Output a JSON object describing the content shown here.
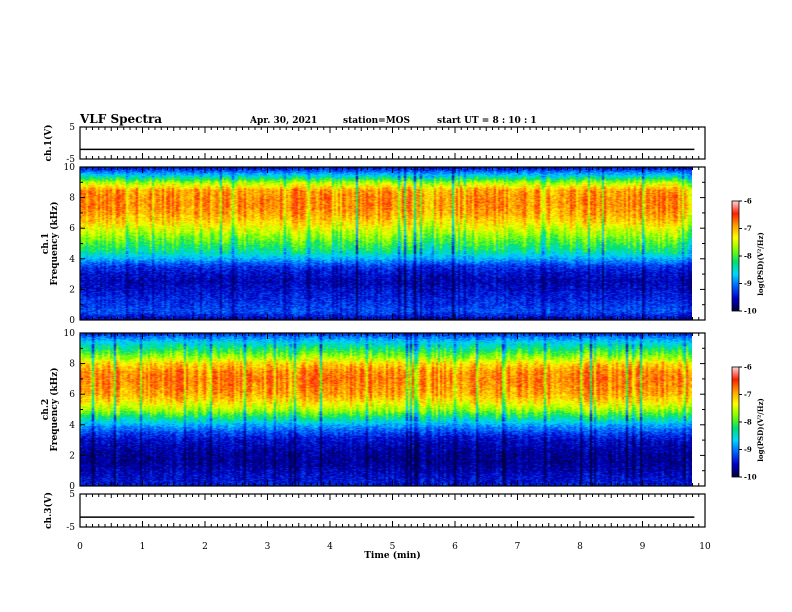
{
  "header": {
    "title": "VLF Spectra",
    "date": "Apr. 30, 2021",
    "station": "station=MOS",
    "start_ut": "start  UT =   8  : 10 : 1"
  },
  "colors": {
    "spectrum": [
      "#000040",
      "#0000c8",
      "#0060ff",
      "#00d8ff",
      "#00e070",
      "#80ff00",
      "#ffff00",
      "#ffa000",
      "#ff2000",
      "#ffd0d0"
    ]
  },
  "chart_data": [
    {
      "type": "line",
      "title": "",
      "ylabel": "ch.1(V)",
      "xlabel": "",
      "xlim": [
        0,
        10
      ],
      "ylim": [
        -5,
        5
      ],
      "yticks": [
        5,
        -5
      ],
      "series": [
        {
          "x": [
            0,
            9.83
          ],
          "values": [
            -2,
            -2
          ]
        }
      ],
      "grid": false
    },
    {
      "type": "heatmap",
      "title": "",
      "ylabel": "ch.1 Frequency (kHz)",
      "xlabel": "",
      "xlim": [
        0,
        9.83
      ],
      "ylim": [
        0,
        10
      ],
      "yticks": [
        0,
        2,
        4,
        6,
        8,
        10
      ],
      "freq_kHz": [
        0,
        0.5,
        1,
        1.5,
        2,
        2.5,
        3,
        3.5,
        4,
        4.5,
        5,
        5.5,
        6,
        6.5,
        7,
        7.5,
        8,
        8.5,
        9,
        9.5,
        10
      ],
      "log_psd": [
        -9.6,
        -9.2,
        -9.3,
        -9.4,
        -9.5,
        -9.6,
        -9.5,
        -9.3,
        -8.8,
        -8.3,
        -8.0,
        -7.7,
        -7.4,
        -7.1,
        -6.9,
        -6.8,
        -6.8,
        -6.9,
        -7.6,
        -8.7,
        -9.5
      ],
      "colorbar": {
        "label": "log(PSD)(V²/Hz)",
        "ticks": [
          -6,
          -7,
          -8,
          -9,
          -10
        ],
        "range": [
          -10,
          -6
        ]
      }
    },
    {
      "type": "heatmap",
      "title": "",
      "ylabel": "ch.2 Frequency (kHz)",
      "xlabel": "",
      "xlim": [
        0,
        9.83
      ],
      "ylim": [
        0,
        10
      ],
      "yticks": [
        0,
        2,
        4,
        6,
        8,
        10
      ],
      "freq_kHz": [
        0,
        0.5,
        1,
        1.5,
        2,
        2.5,
        3,
        3.5,
        4,
        4.5,
        5,
        5.5,
        6,
        6.5,
        7,
        7.5,
        8,
        8.5,
        9,
        9.5,
        10
      ],
      "log_psd": [
        -9.4,
        -9.5,
        -9.6,
        -9.7,
        -9.7,
        -9.6,
        -9.5,
        -9.2,
        -8.8,
        -8.2,
        -7.6,
        -7.2,
        -6.9,
        -6.8,
        -6.7,
        -6.8,
        -7.1,
        -7.7,
        -8.2,
        -8.7,
        -9.3
      ],
      "colorbar": {
        "label": "log(PSD)(V²/Hz)",
        "ticks": [
          -6,
          -7,
          -8,
          -9,
          -10
        ],
        "range": [
          -10,
          -6
        ]
      }
    },
    {
      "type": "line",
      "title": "",
      "ylabel": "ch.3(V)",
      "xlabel": "Time  (min)",
      "xlim": [
        0,
        10
      ],
      "ylim": [
        -5,
        5
      ],
      "yticks": [
        5,
        -5
      ],
      "xticks": [
        0,
        1,
        2,
        3,
        4,
        5,
        6,
        7,
        8,
        9,
        10
      ],
      "series": [
        {
          "x": [
            0,
            9.83
          ],
          "values": [
            -2,
            -2
          ]
        }
      ],
      "grid": false
    }
  ]
}
